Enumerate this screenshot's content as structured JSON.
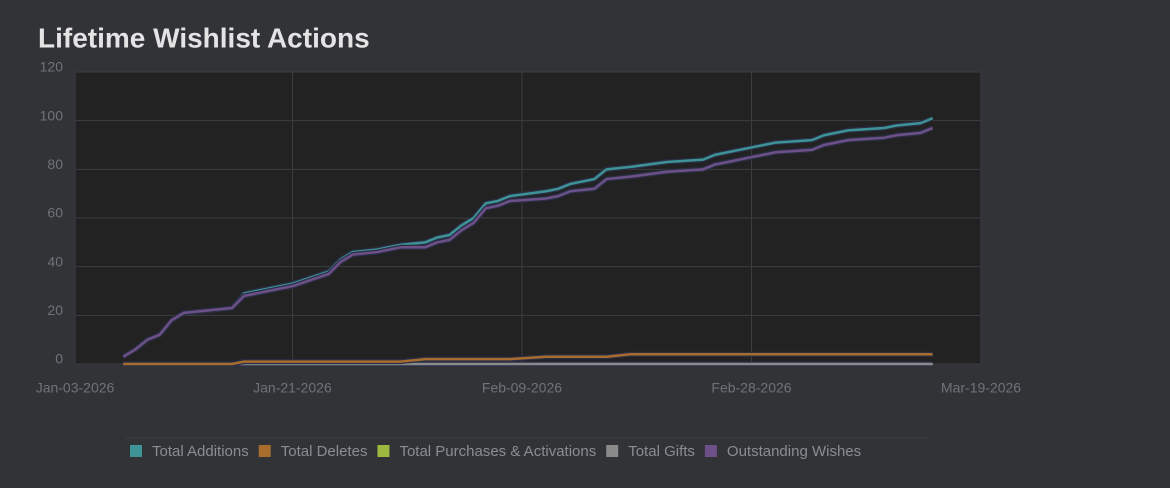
{
  "chart_data": {
    "type": "line",
    "title": "Lifetime Wishlist Actions",
    "x": [
      "2026-01-07",
      "2026-01-08",
      "2026-01-09",
      "2026-01-10",
      "2026-01-11",
      "2026-01-12",
      "2026-01-16",
      "2026-01-17",
      "2026-01-21",
      "2026-01-24",
      "2026-01-25",
      "2026-01-26",
      "2026-01-28",
      "2026-01-30",
      "2026-02-01",
      "2026-02-02",
      "2026-02-03",
      "2026-02-04",
      "2026-02-05",
      "2026-02-06",
      "2026-02-07",
      "2026-02-08",
      "2026-02-11",
      "2026-02-12",
      "2026-02-13",
      "2026-02-15",
      "2026-02-16",
      "2026-02-18",
      "2026-02-21",
      "2026-02-24",
      "2026-02-25",
      "2026-02-28",
      "2026-03-02",
      "2026-03-05",
      "2026-03-06",
      "2026-03-08",
      "2026-03-11",
      "2026-03-12",
      "2026-03-14",
      "2026-03-15"
    ],
    "series": [
      {
        "name": "Total Additions",
        "color": "#3d9396",
        "values": [
          3,
          6,
          10,
          12,
          18,
          21,
          23,
          29,
          33,
          38,
          43,
          46,
          47,
          49,
          50,
          52,
          53,
          57,
          60,
          66,
          67,
          69,
          71,
          72,
          74,
          76,
          80,
          81,
          83,
          84,
          86,
          89,
          91,
          92,
          94,
          96,
          97,
          98,
          99,
          101
        ]
      },
      {
        "name": "Total Deletes",
        "color": "#a86c2c",
        "values": [
          0,
          0,
          0,
          0,
          0,
          0,
          0,
          1,
          1,
          1,
          1,
          1,
          1,
          1,
          2,
          2,
          2,
          2,
          2,
          2,
          2,
          2,
          3,
          3,
          3,
          3,
          3,
          4,
          4,
          4,
          4,
          4,
          4,
          4,
          4,
          4,
          4,
          4,
          4,
          4
        ]
      },
      {
        "name": "Total Purchases & Activations",
        "color": "#9cb83e",
        "values": [
          0,
          0,
          0,
          0,
          0,
          0,
          0,
          0,
          0,
          0,
          0,
          0,
          0,
          0,
          0,
          0,
          0,
          0,
          0,
          0,
          0,
          0,
          0,
          0,
          0,
          0,
          0,
          0,
          0,
          0,
          0,
          0,
          0,
          0,
          0,
          0,
          0,
          0,
          0,
          0
        ]
      },
      {
        "name": "Total Gifts",
        "color": "#8a8a8a",
        "values": [
          0,
          0,
          0,
          0,
          0,
          0,
          0,
          0,
          0,
          0,
          0,
          0,
          0,
          0,
          0,
          0,
          0,
          0,
          0,
          0,
          0,
          0,
          0,
          0,
          0,
          0,
          0,
          0,
          0,
          0,
          0,
          0,
          0,
          0,
          0,
          0,
          0,
          0,
          0,
          0
        ]
      },
      {
        "name": "Outstanding Wishes",
        "color": "#6e5088",
        "values": [
          3,
          6,
          10,
          12,
          18,
          21,
          23,
          28,
          32,
          37,
          42,
          45,
          46,
          48,
          48,
          50,
          51,
          55,
          58,
          64,
          65,
          67,
          68,
          69,
          71,
          72,
          76,
          77,
          79,
          80,
          82,
          85,
          87,
          88,
          90,
          92,
          93,
          94,
          95,
          97
        ]
      }
    ],
    "xlim": [
      "2026-01-03",
      "2026-03-19"
    ],
    "xticks": [
      {
        "value": "2026-01-03",
        "label": "Jan-03-2026"
      },
      {
        "value": "2026-01-21",
        "label": "Jan-21-2026"
      },
      {
        "value": "2026-02-09",
        "label": "Feb-09-2026"
      },
      {
        "value": "2026-02-28",
        "label": "Feb-28-2026"
      },
      {
        "value": "2026-03-19",
        "label": "Mar-19-2026"
      }
    ],
    "ylim": [
      0,
      120
    ],
    "yticks": [
      0,
      20,
      40,
      60,
      80,
      100,
      120
    ],
    "grid": true,
    "legend": "bottom"
  }
}
